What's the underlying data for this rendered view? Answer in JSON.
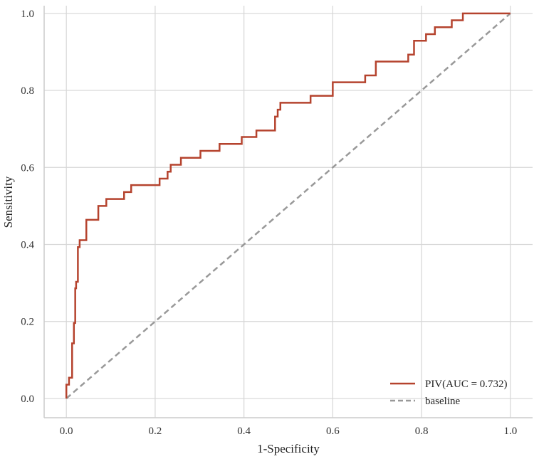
{
  "chart_data": {
    "type": "line",
    "title": "",
    "xlabel": "1-Specificity",
    "ylabel": "Sensitivity",
    "xlim": [
      -0.05,
      1.05
    ],
    "ylim": [
      -0.05,
      1.02
    ],
    "xticks": [
      "0.0",
      "0.2",
      "0.4",
      "0.6",
      "0.8",
      "1.0"
    ],
    "yticks": [
      "0.0",
      "0.2",
      "0.4",
      "0.6",
      "0.8",
      "1.0"
    ],
    "grid": true,
    "legend_position": "bottom-right",
    "series": [
      {
        "name": "PIV(AUC = 0.732)",
        "color": "#b5432e",
        "style": "solid",
        "x": [
          0,
          0,
          0.006,
          0.006,
          0.013,
          0.013,
          0.017,
          0.017,
          0.02,
          0.02,
          0.022,
          0.022,
          0.026,
          0.026,
          0.03,
          0.03,
          0.045,
          0.045,
          0.072,
          0.072,
          0.08,
          0.08,
          0.09,
          0.09,
          0.095,
          0.095,
          0.13,
          0.13,
          0.14,
          0.14,
          0.146,
          0.146,
          0.21,
          0.21,
          0.228,
          0.228,
          0.235,
          0.235,
          0.258,
          0.258,
          0.302,
          0.302,
          0.345,
          0.345,
          0.395,
          0.395,
          0.428,
          0.428,
          0.47,
          0.47,
          0.476,
          0.476,
          0.482,
          0.482,
          0.55,
          0.55,
          0.6,
          0.6,
          0.673,
          0.673,
          0.697,
          0.697,
          0.77,
          0.77,
          0.783,
          0.783,
          0.81,
          0.81,
          0.83,
          0.83,
          0.842,
          0.842,
          0.868,
          0.868,
          0.893,
          0.893,
          1
        ],
        "y": [
          0,
          0.036,
          0.036,
          0.054,
          0.054,
          0.143,
          0.143,
          0.196,
          0.196,
          0.286,
          0.286,
          0.303,
          0.303,
          0.393,
          0.393,
          0.411,
          0.411,
          0.464,
          0.464,
          0.5,
          0.5,
          0.5,
          0.5,
          0.518,
          0.518,
          0.518,
          0.518,
          0.536,
          0.536,
          0.536,
          0.536,
          0.554,
          0.554,
          0.571,
          0.571,
          0.589,
          0.589,
          0.607,
          0.607,
          0.625,
          0.625,
          0.643,
          0.643,
          0.661,
          0.661,
          0.679,
          0.679,
          0.696,
          0.696,
          0.732,
          0.732,
          0.75,
          0.75,
          0.768,
          0.768,
          0.786,
          0.786,
          0.821,
          0.821,
          0.839,
          0.839,
          0.875,
          0.875,
          0.893,
          0.893,
          0.929,
          0.929,
          0.946,
          0.946,
          0.964,
          0.964,
          0.964,
          0.964,
          0.982,
          0.982,
          1,
          1
        ]
      },
      {
        "name": "baseline",
        "color": "#999999",
        "style": "dashed",
        "x": [
          0,
          1
        ],
        "y": [
          0,
          1
        ]
      }
    ]
  }
}
